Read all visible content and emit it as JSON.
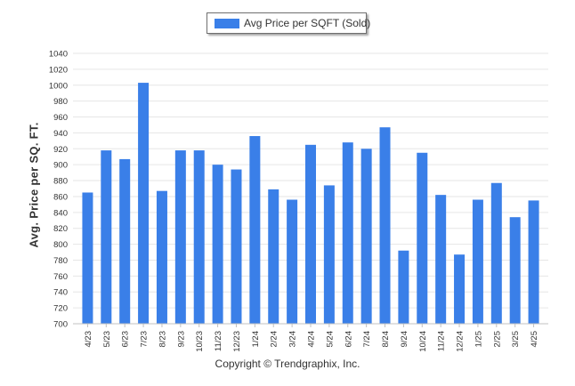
{
  "chart_data": {
    "type": "bar",
    "ylabel": "Avg. Price per SQ. FT.",
    "ylim": [
      700,
      1040
    ],
    "yticks": [
      700,
      720,
      740,
      760,
      780,
      800,
      820,
      840,
      860,
      880,
      900,
      920,
      940,
      960,
      980,
      1000,
      1020,
      1040
    ],
    "categories": [
      "4/23",
      "5/23",
      "6/23",
      "7/23",
      "8/23",
      "9/23",
      "10/23",
      "11/23",
      "12/23",
      "1/24",
      "2/24",
      "3/24",
      "4/24",
      "5/24",
      "6/24",
      "7/24",
      "8/24",
      "9/24",
      "10/24",
      "11/24",
      "12/24",
      "1/25",
      "2/25",
      "3/25",
      "4/25"
    ],
    "series": [
      {
        "name": "Avg Price per SQFT (Sold)",
        "color": "#3a7fe8",
        "values": [
          865,
          918,
          907,
          1003,
          867,
          918,
          918,
          900,
          894,
          936,
          869,
          856,
          925,
          874,
          928,
          920,
          947,
          792,
          915,
          862,
          787,
          856,
          877,
          834,
          855
        ]
      }
    ],
    "legend": "top-center",
    "grid": true
  },
  "footer": {
    "copyright": "Copyright © Trendgraphix, Inc."
  }
}
